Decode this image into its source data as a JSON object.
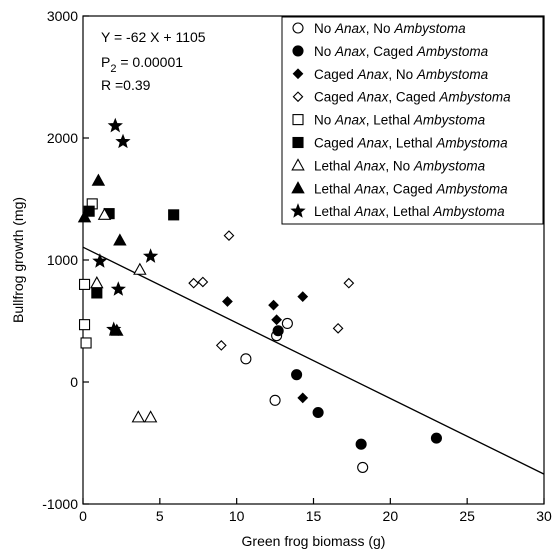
{
  "chart_data": {
    "type": "scatter",
    "xlabel": "Green frog biomass (g)",
    "ylabel": "Bullfrog growth (mg)",
    "xlim": [
      0,
      30
    ],
    "ylim": [
      -1000,
      3000
    ],
    "x_ticks": [
      0,
      5,
      10,
      15,
      20,
      25,
      30
    ],
    "y_ticks": [
      -1000,
      0,
      1000,
      2000,
      3000
    ],
    "grid": false,
    "legend_position": "top-right",
    "regression": {
      "equation": "Y = -62 X + 1105",
      "p_text": "P = 0.00001",
      "r_text": "R =0.39",
      "slope": -62,
      "intercept": 1105
    },
    "series": [
      {
        "name": [
          "No ",
          "Anax",
          ", No ",
          "Ambystoma"
        ],
        "marker": "circle-open",
        "points": [
          [
            10.6,
            190
          ],
          [
            12.6,
            380
          ],
          [
            13.3,
            480
          ],
          [
            12.5,
            -150
          ],
          [
            18.2,
            -700
          ]
        ]
      },
      {
        "name": [
          "No ",
          "Anax",
          ", Caged ",
          "Ambystoma"
        ],
        "marker": "circle-filled",
        "points": [
          [
            12.7,
            420
          ],
          [
            13.9,
            60
          ],
          [
            15.3,
            -250
          ],
          [
            18.1,
            -510
          ],
          [
            23.0,
            -460
          ]
        ]
      },
      {
        "name": [
          "Caged ",
          "Anax",
          ", No ",
          "Ambystoma"
        ],
        "marker": "diamond-filled",
        "points": [
          [
            9.4,
            660
          ],
          [
            12.4,
            630
          ],
          [
            12.6,
            510
          ],
          [
            14.3,
            700
          ],
          [
            14.3,
            -130
          ]
        ]
      },
      {
        "name": [
          "Caged ",
          "Anax",
          ", Caged ",
          "Ambystoma"
        ],
        "marker": "diamond-open",
        "points": [
          [
            7.8,
            820
          ],
          [
            9.5,
            1200
          ],
          [
            7.2,
            810
          ],
          [
            9.0,
            300
          ],
          [
            16.6,
            440
          ],
          [
            17.3,
            810
          ]
        ]
      },
      {
        "name": [
          "No ",
          "Anax",
          ", Lethal ",
          "Ambystoma"
        ],
        "marker": "square-open",
        "points": [
          [
            0.6,
            1460
          ],
          [
            0.1,
            800
          ],
          [
            0.1,
            470
          ],
          [
            0.2,
            320
          ]
        ]
      },
      {
        "name": [
          "Caged ",
          "Anax",
          ", Lethal ",
          "Ambystoma"
        ],
        "marker": "square-filled",
        "points": [
          [
            0.4,
            1400
          ],
          [
            1.7,
            1380
          ],
          [
            5.9,
            1370
          ],
          [
            0.9,
            730
          ]
        ]
      },
      {
        "name": [
          "Lethal ",
          "Anax",
          ", No ",
          "Ambystoma"
        ],
        "marker": "triangle-open",
        "points": [
          [
            1.4,
            1370
          ],
          [
            0.9,
            810
          ],
          [
            3.7,
            920
          ],
          [
            3.6,
            -290
          ],
          [
            4.4,
            -290
          ]
        ]
      },
      {
        "name": [
          "Lethal ",
          "Anax",
          ", Caged ",
          "Ambystoma"
        ],
        "marker": "triangle-filled",
        "points": [
          [
            0.1,
            1350
          ],
          [
            1.0,
            1650
          ],
          [
            2.4,
            1160
          ],
          [
            2.2,
            420
          ]
        ]
      },
      {
        "name": [
          "Lethal ",
          "Anax",
          ", Lethal ",
          "Ambystoma"
        ],
        "marker": "star-filled",
        "points": [
          [
            2.1,
            2100
          ],
          [
            2.6,
            1970
          ],
          [
            4.4,
            1030
          ],
          [
            1.1,
            990
          ],
          [
            2.3,
            760
          ],
          [
            2.0,
            430
          ]
        ]
      }
    ]
  }
}
